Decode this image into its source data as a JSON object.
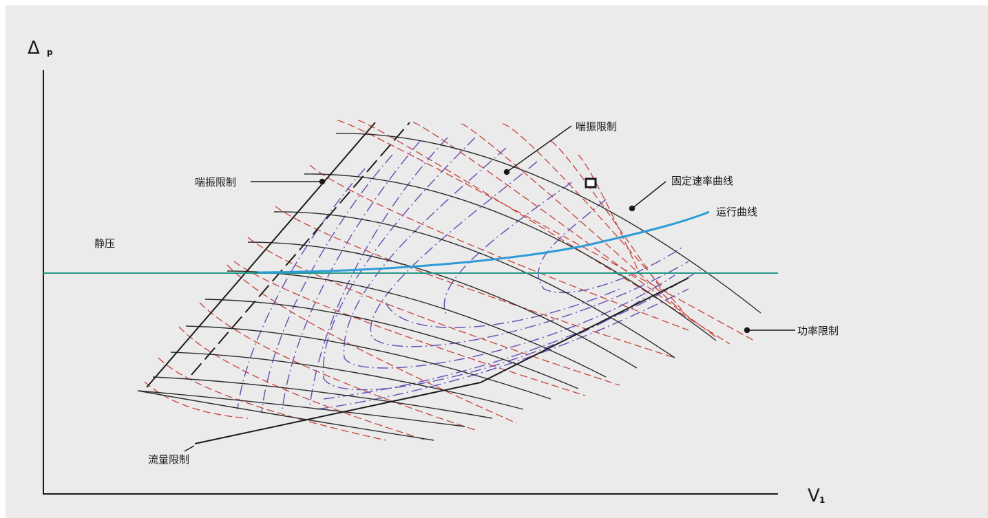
{
  "axes": {
    "y_label": "Δ",
    "y_sub": "p",
    "x_label": "V",
    "x_sub": "1"
  },
  "labels": {
    "surge_limit_left": "喘振限制",
    "surge_limit_top": "喘振限制",
    "fixed_speed_curve": "固定速率曲线",
    "operating_curve": "运行曲线",
    "static_pressure": "静压",
    "power_limit": "功率限制",
    "flow_limit": "流量限制"
  },
  "colors": {
    "background": "#ebebeb",
    "speed_curves": "#2b2b2b",
    "red_dashed": "#c8413a",
    "purple_dashed": "#6a55b5",
    "operating_curve": "#2d9bd8",
    "static_pressure_line": "#1f9a8a",
    "axes": "#1a1a1a"
  }
}
